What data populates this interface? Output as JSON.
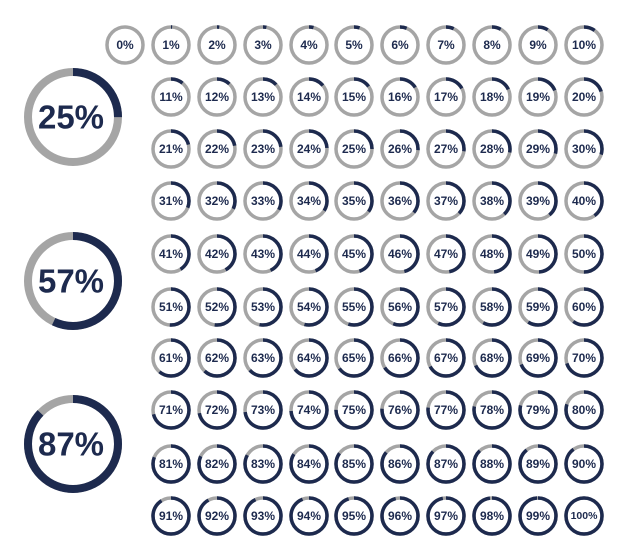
{
  "colors": {
    "track": "#a5a5a5",
    "fill": "#1d2a4e",
    "text": "#1d2a4e",
    "background": "#ffffff"
  },
  "featured": [
    {
      "percent": 25,
      "label": "25%"
    },
    {
      "percent": 57,
      "label": "57%"
    },
    {
      "percent": 87,
      "label": "87%"
    }
  ],
  "grid_rows": [
    [
      {
        "percent": 0,
        "label": "0%"
      },
      {
        "percent": 1,
        "label": "1%"
      },
      {
        "percent": 2,
        "label": "2%"
      },
      {
        "percent": 3,
        "label": "3%"
      },
      {
        "percent": 4,
        "label": "4%"
      },
      {
        "percent": 5,
        "label": "5%"
      },
      {
        "percent": 6,
        "label": "6%"
      },
      {
        "percent": 7,
        "label": "7%"
      },
      {
        "percent": 8,
        "label": "8%"
      },
      {
        "percent": 9,
        "label": "9%"
      },
      {
        "percent": 10,
        "label": "10%"
      }
    ],
    [
      {
        "percent": 11,
        "label": "11%"
      },
      {
        "percent": 12,
        "label": "12%"
      },
      {
        "percent": 13,
        "label": "13%"
      },
      {
        "percent": 14,
        "label": "14%"
      },
      {
        "percent": 15,
        "label": "15%"
      },
      {
        "percent": 16,
        "label": "16%"
      },
      {
        "percent": 17,
        "label": "17%"
      },
      {
        "percent": 18,
        "label": "18%"
      },
      {
        "percent": 19,
        "label": "19%"
      },
      {
        "percent": 20,
        "label": "20%"
      }
    ],
    [
      {
        "percent": 21,
        "label": "21%"
      },
      {
        "percent": 22,
        "label": "22%"
      },
      {
        "percent": 23,
        "label": "23%"
      },
      {
        "percent": 24,
        "label": "24%"
      },
      {
        "percent": 25,
        "label": "25%"
      },
      {
        "percent": 26,
        "label": "26%"
      },
      {
        "percent": 27,
        "label": "27%"
      },
      {
        "percent": 28,
        "label": "28%"
      },
      {
        "percent": 29,
        "label": "29%"
      },
      {
        "percent": 30,
        "label": "30%"
      }
    ],
    [
      {
        "percent": 31,
        "label": "31%"
      },
      {
        "percent": 32,
        "label": "32%"
      },
      {
        "percent": 33,
        "label": "33%"
      },
      {
        "percent": 34,
        "label": "34%"
      },
      {
        "percent": 35,
        "label": "35%"
      },
      {
        "percent": 36,
        "label": "36%"
      },
      {
        "percent": 37,
        "label": "37%"
      },
      {
        "percent": 38,
        "label": "38%"
      },
      {
        "percent": 39,
        "label": "39%"
      },
      {
        "percent": 40,
        "label": "40%"
      }
    ],
    [
      {
        "percent": 41,
        "label": "41%"
      },
      {
        "percent": 42,
        "label": "42%"
      },
      {
        "percent": 43,
        "label": "43%"
      },
      {
        "percent": 44,
        "label": "44%"
      },
      {
        "percent": 45,
        "label": "45%"
      },
      {
        "percent": 46,
        "label": "46%"
      },
      {
        "percent": 47,
        "label": "47%"
      },
      {
        "percent": 48,
        "label": "48%"
      },
      {
        "percent": 49,
        "label": "49%"
      },
      {
        "percent": 50,
        "label": "50%"
      }
    ],
    [
      {
        "percent": 51,
        "label": "51%"
      },
      {
        "percent": 52,
        "label": "52%"
      },
      {
        "percent": 53,
        "label": "53%"
      },
      {
        "percent": 54,
        "label": "54%"
      },
      {
        "percent": 55,
        "label": "55%"
      },
      {
        "percent": 56,
        "label": "56%"
      },
      {
        "percent": 57,
        "label": "57%"
      },
      {
        "percent": 58,
        "label": "58%"
      },
      {
        "percent": 59,
        "label": "59%"
      },
      {
        "percent": 60,
        "label": "60%"
      }
    ],
    [
      {
        "percent": 61,
        "label": "61%"
      },
      {
        "percent": 62,
        "label": "62%"
      },
      {
        "percent": 63,
        "label": "63%"
      },
      {
        "percent": 64,
        "label": "64%"
      },
      {
        "percent": 65,
        "label": "65%"
      },
      {
        "percent": 66,
        "label": "66%"
      },
      {
        "percent": 67,
        "label": "67%"
      },
      {
        "percent": 68,
        "label": "68%"
      },
      {
        "percent": 69,
        "label": "69%"
      },
      {
        "percent": 70,
        "label": "70%"
      }
    ],
    [
      {
        "percent": 71,
        "label": "71%"
      },
      {
        "percent": 72,
        "label": "72%"
      },
      {
        "percent": 73,
        "label": "73%"
      },
      {
        "percent": 74,
        "label": "74%"
      },
      {
        "percent": 75,
        "label": "75%"
      },
      {
        "percent": 76,
        "label": "76%"
      },
      {
        "percent": 77,
        "label": "77%"
      },
      {
        "percent": 78,
        "label": "78%"
      },
      {
        "percent": 79,
        "label": "79%"
      },
      {
        "percent": 80,
        "label": "80%"
      }
    ],
    [
      {
        "percent": 81,
        "label": "81%"
      },
      {
        "percent": 82,
        "label": "82%"
      },
      {
        "percent": 83,
        "label": "83%"
      },
      {
        "percent": 84,
        "label": "84%"
      },
      {
        "percent": 85,
        "label": "85%"
      },
      {
        "percent": 86,
        "label": "86%"
      },
      {
        "percent": 87,
        "label": "87%"
      },
      {
        "percent": 88,
        "label": "88%"
      },
      {
        "percent": 89,
        "label": "89%"
      },
      {
        "percent": 90,
        "label": "90%"
      }
    ],
    [
      {
        "percent": 91,
        "label": "91%"
      },
      {
        "percent": 92,
        "label": "92%"
      },
      {
        "percent": 93,
        "label": "93%"
      },
      {
        "percent": 94,
        "label": "94%"
      },
      {
        "percent": 95,
        "label": "95%"
      },
      {
        "percent": 96,
        "label": "96%"
      },
      {
        "percent": 97,
        "label": "97%"
      },
      {
        "percent": 98,
        "label": "98%"
      },
      {
        "percent": 99,
        "label": "99%"
      },
      {
        "percent": 100,
        "label": "100%"
      }
    ]
  ]
}
